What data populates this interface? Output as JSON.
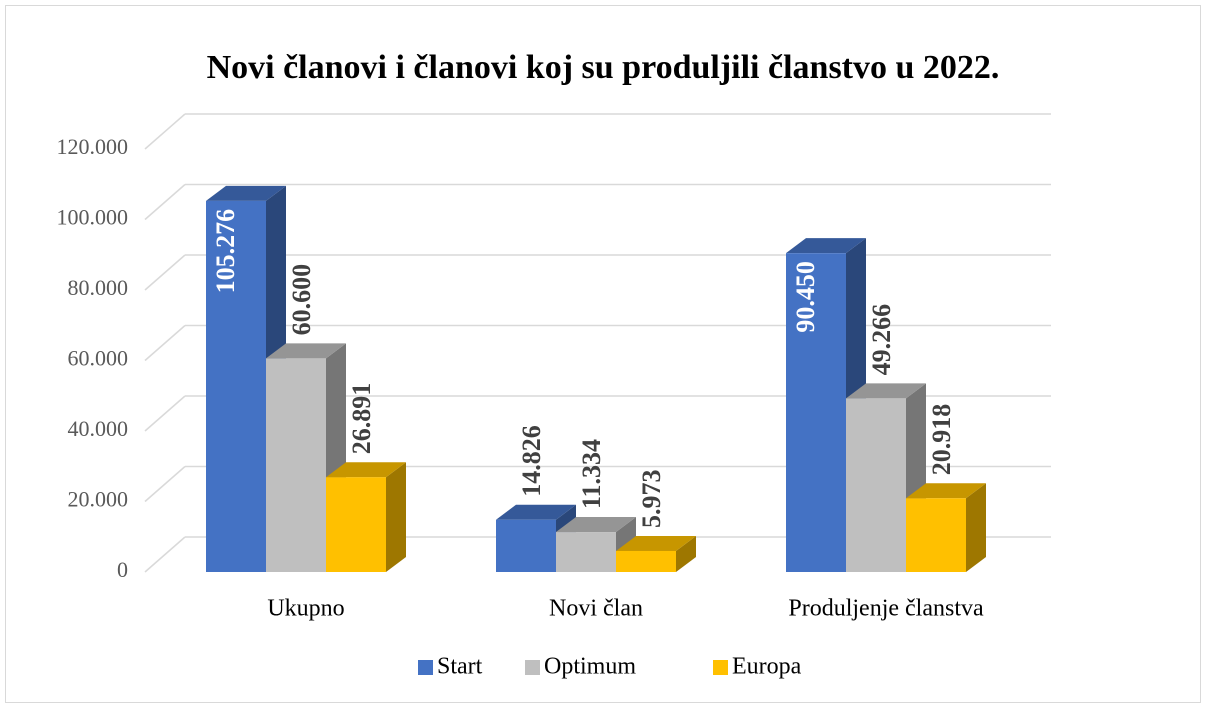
{
  "chart_data": {
    "type": "bar3d",
    "title": "Novi članovi i članovi koj su produljili članstvo u 2022.",
    "categories": [
      "Ukupno",
      "Novi član",
      "Produljenje članstva"
    ],
    "series": [
      {
        "name": "Start",
        "color": "#4472c4",
        "values": [
          105276,
          14826,
          90450
        ],
        "value_labels": [
          "105.276",
          "14.826",
          "90.450"
        ]
      },
      {
        "name": "Optimum",
        "color": "#bfbfbf",
        "values": [
          60600,
          11334,
          49266
        ],
        "value_labels": [
          "60.600",
          "11.334",
          "49.266"
        ]
      },
      {
        "name": "Europa",
        "color": "#ffc000",
        "values": [
          26891,
          5973,
          20918
        ],
        "value_labels": [
          "26.891",
          "5.973",
          "20.918"
        ]
      }
    ],
    "ylim": [
      0,
      120000
    ],
    "yticks": [
      0,
      {
        "value": 20000,
        "label": "20.000"
      },
      {
        "value": 40000,
        "label": "40.000"
      },
      {
        "value": 60000,
        "label": "60.000"
      },
      {
        "value": 80000,
        "label": "80.000"
      },
      {
        "value": 100000,
        "label": "100.000"
      },
      {
        "value": 120000,
        "label": "120.000"
      }
    ],
    "grid": true,
    "legend": "bottom"
  }
}
